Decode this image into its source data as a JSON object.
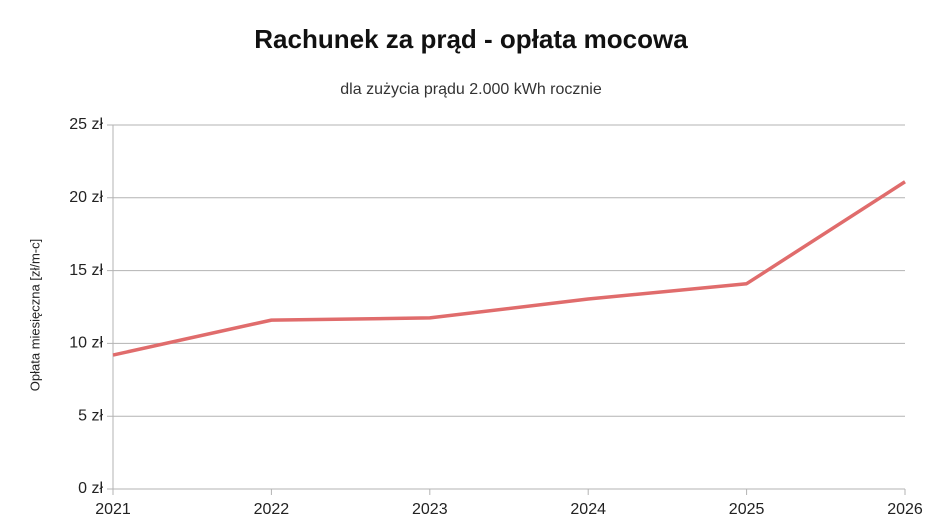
{
  "chart_data": {
    "type": "line",
    "title": "Rachunek za prąd - opłata mocowa",
    "subtitle": "dla zużycia prądu 2.000 kWh rocznie",
    "y_label": "Opłata miesięczna [zł/m-c]",
    "x": [
      2021,
      2022,
      2023,
      2024,
      2025,
      2026
    ],
    "series": [
      {
        "color": "#e06c6c",
        "values": [
          9.2,
          11.6,
          11.75,
          13.05,
          14.1,
          21.1
        ]
      }
    ],
    "xlim": [
      2021,
      2026
    ],
    "xticks": [
      2021,
      2022,
      2023,
      2024,
      2025,
      2026
    ],
    "ylim": [
      0,
      25
    ],
    "yticks": [
      {
        "value": 0,
        "label": "0 zł"
      },
      {
        "value": 5,
        "label": "5 zł"
      },
      {
        "value": 10,
        "label": "10 zł"
      },
      {
        "value": 15,
        "label": "15 zł"
      },
      {
        "value": 20,
        "label": "20 zł"
      },
      {
        "value": 25,
        "label": "25 zł"
      }
    ],
    "grid": true
  }
}
